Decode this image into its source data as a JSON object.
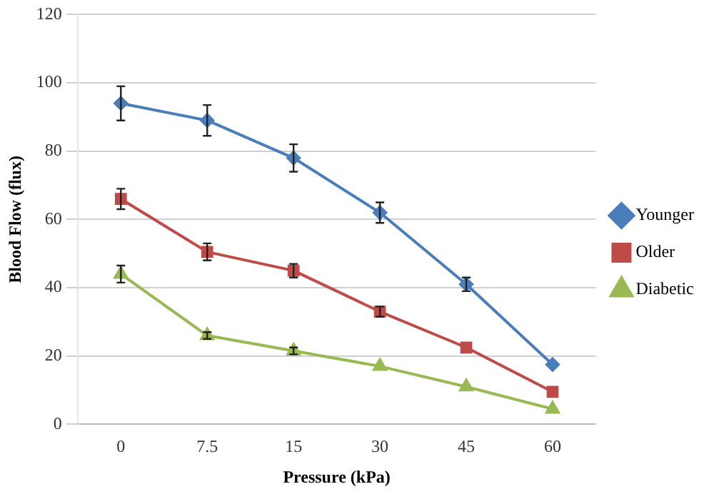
{
  "chart_data": {
    "type": "line",
    "xlabel": "Pressure (kPa)",
    "ylabel": "Blood Flow (flux)",
    "categories": [
      "0",
      "7.5",
      "15",
      "30",
      "45",
      "60"
    ],
    "series": [
      {
        "name": "Younger",
        "color": "#4a7ebb",
        "marker": "diamond",
        "values": [
          94,
          89,
          78,
          62,
          41,
          17.5
        ],
        "errors": [
          5,
          4.5,
          4,
          3,
          2,
          null
        ]
      },
      {
        "name": "Older",
        "color": "#be4b48",
        "marker": "square",
        "values": [
          66,
          50.5,
          45,
          33,
          22.5,
          9.5
        ],
        "errors": [
          3,
          2.5,
          2,
          1.5,
          null,
          null
        ]
      },
      {
        "name": "Diabetic",
        "color": "#98b954",
        "marker": "triangle",
        "values": [
          44,
          26,
          21.5,
          17,
          11,
          4.5
        ],
        "errors": [
          2.5,
          1,
          1,
          null,
          null,
          null
        ]
      }
    ],
    "ylim": [
      0,
      120
    ],
    "yticks": [
      0,
      20,
      40,
      60,
      80,
      100,
      120
    ],
    "grid": "y",
    "legend": "right",
    "line_style": "solid"
  }
}
